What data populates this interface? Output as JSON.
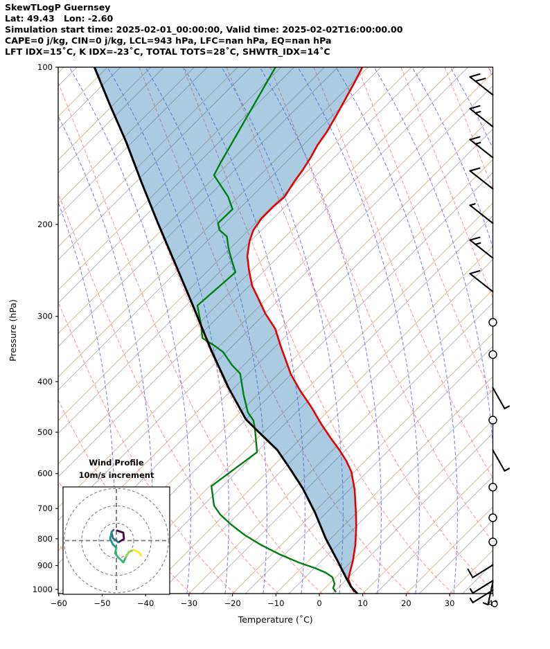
{
  "header": {
    "title": "SkewTLogP Guernsey",
    "location": "Lat: 49.43   Lon: -2.60",
    "times": "Simulation start time: 2025-02-01_00:00:00, Valid time: 2025-02-02T16:00:00.00",
    "indices_line1": "CAPE=0 j/kg, CIN=0 j/kg, LCL=943 hPa, LFC=nan hPa, EQ=nan hPa",
    "indices_line2": "LFT IDX=15˚C, K IDX=-23˚C, TOTAL TOTS=28˚C, SHWTR_IDX=14˚C"
  },
  "axes": {
    "x": {
      "label": "Temperature (˚C)",
      "tick_values": [
        -60,
        -50,
        -40,
        -30,
        -20,
        -10,
        0,
        10,
        20,
        30,
        40
      ]
    },
    "y": {
      "label": "Pressure (hPa)",
      "tick_values": [
        100,
        200,
        300,
        400,
        500,
        600,
        700,
        800,
        900,
        1000
      ]
    }
  },
  "chart_data": {
    "type": "skewt_logp",
    "pressure_range_hPa": [
      100,
      1020
    ],
    "temperature_axis_range_C": [
      -60,
      40
    ],
    "skew": "isotherms at 45 degrees",
    "grid": {
      "isotherm_step_C": 10,
      "isotherm_color_tan": "#d2b48c",
      "isotherm_color_gray": "#b0b0b0",
      "dry_adiabat_color": "#fb7b7b",
      "moist_adiabat_color": "#7474e2"
    },
    "series": [
      {
        "name": "temperature",
        "color": "#e60000",
        "width": 2.6,
        "points_p_T": [
          [
            100,
            -111.3
          ],
          [
            107,
            -109.6
          ],
          [
            114,
            -108.1
          ],
          [
            122,
            -106.5
          ],
          [
            133,
            -104.6
          ],
          [
            141,
            -103.7
          ],
          [
            149,
            -102.4
          ],
          [
            157,
            -101.4
          ],
          [
            166,
            -100.6
          ],
          [
            177,
            -99.4
          ],
          [
            185,
            -99.7
          ],
          [
            195,
            -99.7
          ],
          [
            205,
            -98.9
          ],
          [
            215,
            -97.3
          ],
          [
            230,
            -94.3
          ],
          [
            245,
            -90.6
          ],
          [
            262,
            -86.4
          ],
          [
            278,
            -81.8
          ],
          [
            296,
            -77.0
          ],
          [
            317,
            -71.1
          ],
          [
            342,
            -65.9
          ],
          [
            387,
            -57.1
          ],
          [
            415,
            -51.4
          ],
          [
            448,
            -44.7
          ],
          [
            484,
            -38.3
          ],
          [
            513,
            -33.2
          ],
          [
            541,
            -28.4
          ],
          [
            567,
            -24.4
          ],
          [
            595,
            -20.7
          ],
          [
            644,
            -15.8
          ],
          [
            713,
            -10.2
          ],
          [
            757,
            -7.0
          ],
          [
            822,
            -2.9
          ],
          [
            882,
            0.2
          ],
          [
            929,
            2.2
          ],
          [
            955,
            3.3
          ],
          [
            982,
            5.3
          ],
          [
            1012,
            7.7
          ]
        ]
      },
      {
        "name": "dewpoint",
        "color": "#007f0e",
        "width": 2.4,
        "points_p_T": [
          [
            100,
            -131.3
          ],
          [
            152,
            -122.0
          ],
          [
            161,
            -120.6
          ],
          [
            177,
            -112.4
          ],
          [
            187,
            -108.5
          ],
          [
            199,
            -108.6
          ],
          [
            205,
            -106.7
          ],
          [
            211,
            -103.5
          ],
          [
            223,
            -100.2
          ],
          [
            234,
            -97.0
          ],
          [
            247,
            -93.3
          ],
          [
            286,
            -94.4
          ],
          [
            312,
            -89.0
          ],
          [
            330,
            -85.8
          ],
          [
            342,
            -81.0
          ],
          [
            351,
            -77.8
          ],
          [
            372,
            -72.7
          ],
          [
            386,
            -68.9
          ],
          [
            424,
            -63.2
          ],
          [
            458,
            -58.2
          ],
          [
            475,
            -55.0
          ],
          [
            494,
            -52.6
          ],
          [
            546,
            -46.9
          ],
          [
            634,
            -49.6
          ],
          [
            691,
            -44.5
          ],
          [
            719,
            -41.0
          ],
          [
            750,
            -36.4
          ],
          [
            786,
            -30.8
          ],
          [
            822,
            -24.6
          ],
          [
            856,
            -18.3
          ],
          [
            890,
            -11.5
          ],
          [
            910,
            -6.9
          ],
          [
            929,
            -3.3
          ],
          [
            947,
            -0.8
          ],
          [
            976,
            1.3
          ],
          [
            994,
            1.9
          ],
          [
            1012,
            3.5
          ]
        ]
      },
      {
        "name": "parcel",
        "color": "#000000",
        "width": 3.0,
        "points_p_T": [
          [
            100,
            -173.0
          ],
          [
            118,
            -160.8
          ],
          [
            139,
            -148.5
          ],
          [
            166,
            -135.7
          ],
          [
            198,
            -122.8
          ],
          [
            237,
            -109.4
          ],
          [
            285,
            -95.7
          ],
          [
            348,
            -81.0
          ],
          [
            411,
            -68.3
          ],
          [
            472,
            -57.1
          ],
          [
            506,
            -49.8
          ],
          [
            541,
            -42.7
          ],
          [
            590,
            -35.1
          ],
          [
            640,
            -28.1
          ],
          [
            713,
            -19.6
          ],
          [
            798,
            -11.3
          ],
          [
            882,
            -3.3
          ],
          [
            952,
            2.7
          ],
          [
            988,
            5.7
          ],
          [
            1020,
            8.9
          ]
        ]
      }
    ],
    "shading": {
      "between": [
        "parcel",
        "temperature"
      ],
      "color": "#1f77b4",
      "opacity": 0.38
    },
    "wind_barbs": [
      {
        "p": 113,
        "dir": "NW",
        "f": [
          1,
          1
        ]
      },
      {
        "p": 130,
        "dir": "NW",
        "f": [
          1,
          0.5
        ]
      },
      {
        "p": 149,
        "dir": "NW",
        "f": [
          1,
          0.5
        ]
      },
      {
        "p": 171,
        "dir": "NW",
        "f": [
          1
        ]
      },
      {
        "p": 199,
        "dir": "NW",
        "f": [
          0.5
        ]
      },
      {
        "p": 232,
        "dir": "NW",
        "f": [
          1,
          0.5
        ]
      },
      {
        "p": 269,
        "dir": "NW",
        "f": [
          1
        ]
      },
      {
        "p": 308,
        "kind": "calm"
      },
      {
        "p": 355,
        "kind": "calm"
      },
      {
        "p": 411,
        "dir": "SE",
        "f": [
          0.5
        ]
      },
      {
        "p": 474,
        "kind": "calm"
      },
      {
        "p": 541,
        "dir": "SE",
        "f": [
          0.5
        ]
      },
      {
        "p": 637,
        "kind": "calm"
      },
      {
        "p": 729,
        "kind": "calm"
      },
      {
        "p": 811,
        "kind": "calm"
      },
      {
        "p": 898,
        "dir": "S",
        "f": [
          1
        ]
      },
      {
        "p": 962,
        "dir": "S",
        "f": [
          0.5
        ]
      },
      {
        "p": 967,
        "dir": "S2",
        "f": [
          0.5
        ]
      },
      {
        "p": 1003,
        "dir": "S",
        "f": [
          0.5
        ]
      },
      {
        "p": 1066,
        "kind": "calm-small"
      }
    ],
    "hodograph": {
      "title": "Wind Profile",
      "subtitle": "10m/s increment",
      "ring_interval_ms": 10,
      "ring_radii_ms": [
        10,
        20,
        30
      ],
      "trace": [
        {
          "color": "#440154",
          "pts": [
            [
              169,
              766
            ],
            [
              178,
              769
            ],
            [
              179,
              778
            ],
            [
              171,
              783
            ]
          ]
        },
        {
          "color": "#31688e",
          "pts": [
            [
              171,
              783
            ],
            [
              163,
              777
            ],
            [
              161,
              768
            ],
            [
              164,
              765
            ]
          ]
        },
        {
          "color": "#21918c",
          "pts": [
            [
              161,
              768
            ],
            [
              159,
              778
            ],
            [
              163,
              786
            ],
            [
              168,
              791
            ]
          ]
        },
        {
          "color": "#35b779",
          "pts": [
            [
              168,
              791
            ],
            [
              166,
              799
            ],
            [
              172,
              806
            ],
            [
              178,
              812
            ],
            [
              182,
              804
            ]
          ]
        },
        {
          "color": "#90d743",
          "pts": [
            [
              182,
              804
            ],
            [
              186,
              797
            ],
            [
              193,
              794
            ]
          ]
        },
        {
          "color": "#fde725",
          "pts": [
            [
              193,
              794
            ],
            [
              200,
              797
            ],
            [
              204,
              802
            ]
          ]
        }
      ]
    }
  }
}
